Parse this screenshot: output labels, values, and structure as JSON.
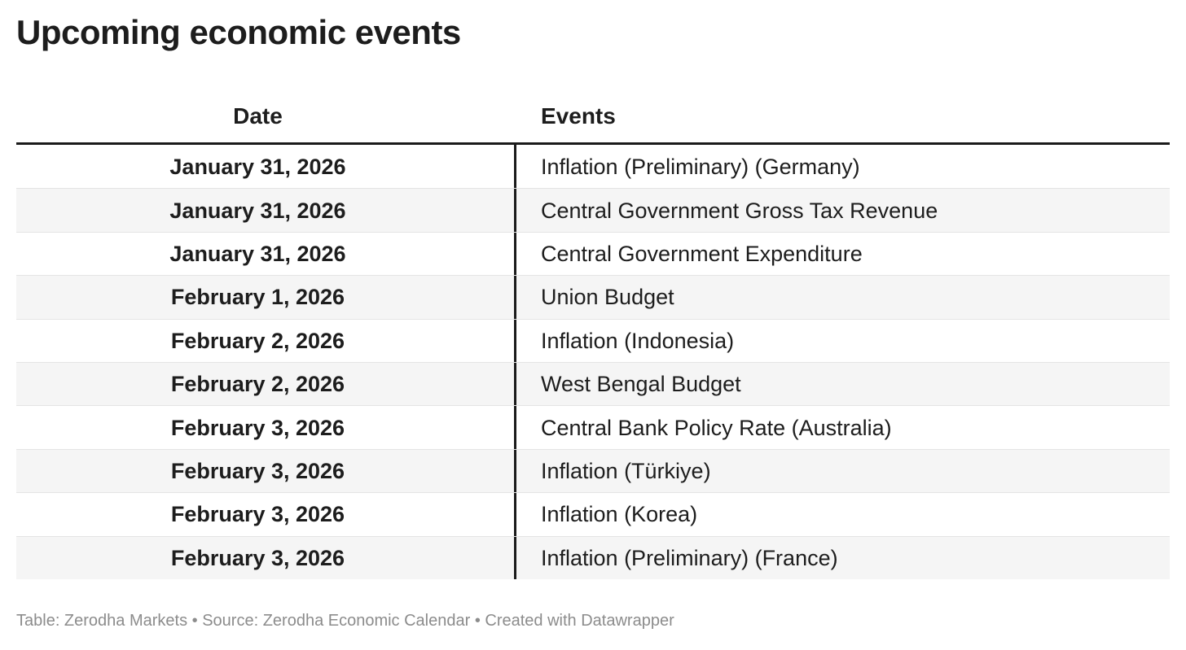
{
  "chart_data": {
    "type": "table",
    "title": "Upcoming economic events",
    "columns": [
      "Date",
      "Events"
    ],
    "rows": [
      [
        "January 31, 2026",
        "Inflation (Preliminary) (Germany)"
      ],
      [
        "January 31, 2026",
        "Central Government Gross Tax Revenue"
      ],
      [
        "January 31, 2026",
        "Central Government Expenditure"
      ],
      [
        "February 1, 2026",
        "Union Budget"
      ],
      [
        "February 2, 2026",
        "Inflation (Indonesia)"
      ],
      [
        "February 2, 2026",
        "West Bengal Budget"
      ],
      [
        "February 3, 2026",
        "Central Bank Policy Rate (Australia)"
      ],
      [
        "February 3, 2026",
        "Inflation (Türkiye)"
      ],
      [
        "February 3, 2026",
        "Inflation (Korea)"
      ],
      [
        "February 3, 2026",
        "Inflation (Preliminary) (France)"
      ]
    ],
    "footer": "Table: Zerodha Markets • Source: Zerodha Economic Calendar • Created with Datawrapper",
    "layout_hints": {
      "date_column_alignment": "center",
      "events_column_alignment": "left",
      "alternating_rows": true,
      "column_divider": true
    }
  },
  "colors": {
    "ink": "#1d1d1d",
    "line_dark": "#1a1a1a",
    "row_alt": "#f5f5f5",
    "row_border": "#e4e4e4",
    "footer": "#8c8c8c",
    "bg": "#ffffff"
  }
}
